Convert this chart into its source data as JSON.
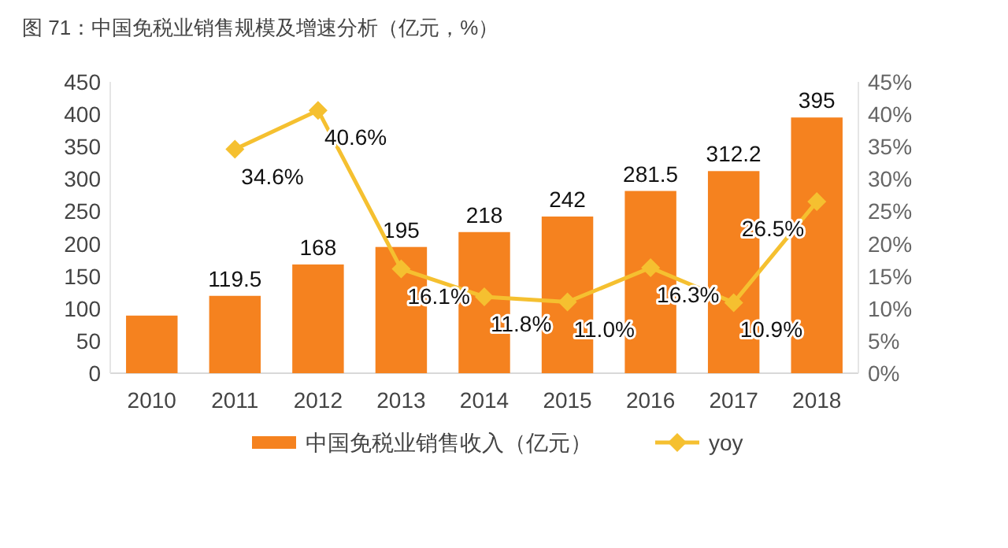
{
  "chart_data": {
    "type": "bar",
    "title": "图 71：中国免税业销售规模及增速分析（亿元，%）",
    "categories": [
      "2010",
      "2011",
      "2012",
      "2013",
      "2014",
      "2015",
      "2016",
      "2017",
      "2018"
    ],
    "series": [
      {
        "name": "中国免税业销售收入（亿元）",
        "color": "#f5821f",
        "values": [
          89,
          119.5,
          168,
          195,
          218,
          242,
          281.5,
          312.2,
          395
        ],
        "value_labels": [
          null,
          "119.5",
          "168",
          "195",
          "218",
          "242",
          "281.5",
          "312.2",
          "395"
        ]
      },
      {
        "name": "yoy",
        "type": "line",
        "axis": "y2",
        "color": "#f5c030",
        "marker": "diamond",
        "values": [
          null,
          34.6,
          40.6,
          16.1,
          11.8,
          11.0,
          16.3,
          10.9,
          26.5
        ],
        "value_labels": [
          null,
          "34.6%",
          "40.6%",
          "16.1%",
          "11.8%",
          "11.0%",
          "16.3%",
          "10.9%",
          "26.5%"
        ]
      }
    ],
    "ylim": [
      0,
      450
    ],
    "yticks": [
      0,
      50,
      100,
      150,
      200,
      250,
      300,
      350,
      400,
      450
    ],
    "y2lim": [
      0,
      45
    ],
    "y2ticks": [
      {
        "value": 0,
        "label": "0%"
      },
      {
        "value": 5,
        "label": "5%"
      },
      {
        "value": 10,
        "label": "10%"
      },
      {
        "value": 15,
        "label": "15%"
      },
      {
        "value": 20,
        "label": "20%"
      },
      {
        "value": 25,
        "label": "25%"
      },
      {
        "value": 30,
        "label": "30%"
      },
      {
        "value": 35,
        "label": "35%"
      },
      {
        "value": 40,
        "label": "40%"
      },
      {
        "value": 45,
        "label": "45%"
      }
    ],
    "grid": false,
    "legend": "bottom"
  }
}
